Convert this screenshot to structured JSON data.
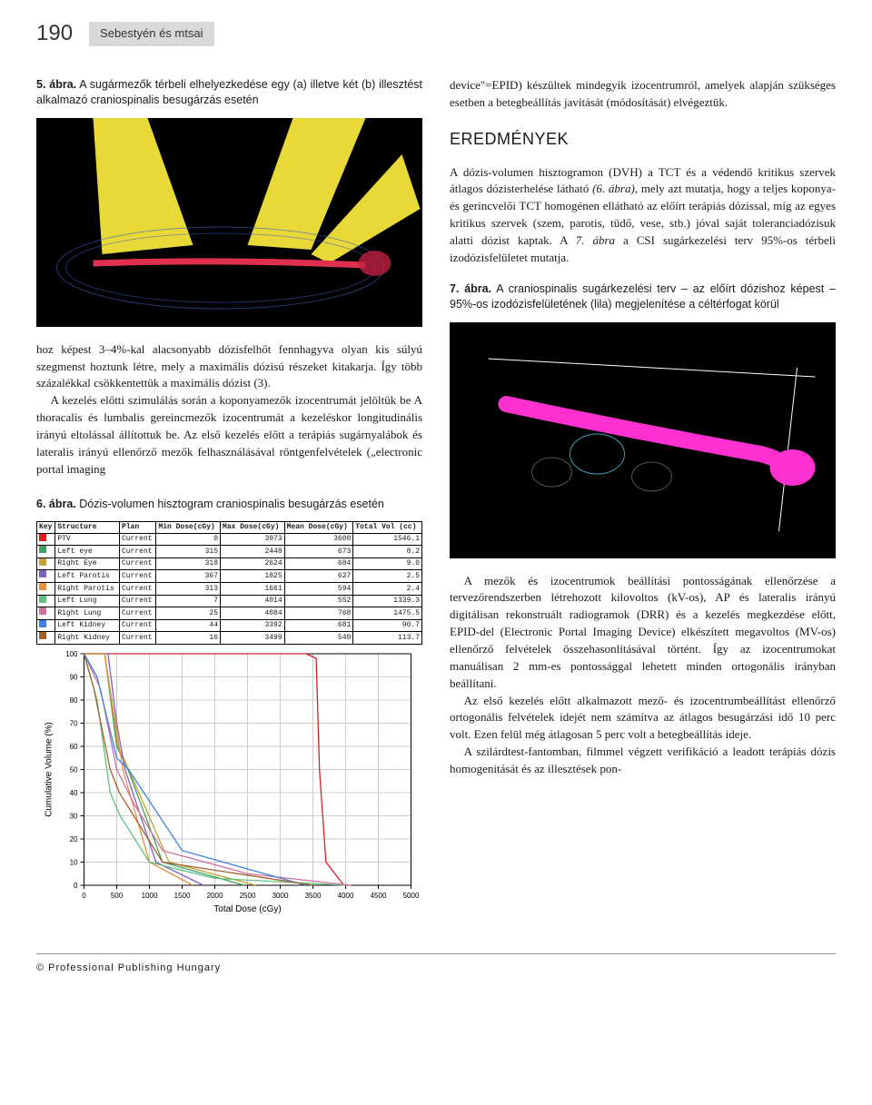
{
  "page_number": "190",
  "header_authors": "Sebestyén és mtsai",
  "figure5": {
    "label": "5. ábra.",
    "caption": "A sugármezők térbeli elhelyezkedése egy (a) illetve két (b) illesztést alkalmazó craniospinalis besugárzás esetén"
  },
  "figure6": {
    "label": "6. ábra.",
    "caption": "Dózis-volumen hisztogram craniospinalis besugárzás esetén",
    "table_headers": [
      "Key",
      "Structure",
      "Plan",
      "Min Dose(cGy)",
      "Max Dose(cGy)",
      "Mean Dose(cGy)",
      "Total Vol (cc)"
    ],
    "table_rows": [
      [
        "PTV",
        "Current",
        "0",
        "3973",
        "3600",
        "1546.1"
      ],
      [
        "Left eye",
        "Current",
        "315",
        "2448",
        "673",
        "8.2"
      ],
      [
        "Right Eye",
        "Current",
        "318",
        "2624",
        "684",
        "9.0"
      ],
      [
        "Left Parotis",
        "Current",
        "367",
        "1825",
        "627",
        "2.5"
      ],
      [
        "Right Parotis",
        "Current",
        "313",
        "1661",
        "594",
        "2.4"
      ],
      [
        "Left Lung",
        "Current",
        "7",
        "4014",
        "552",
        "1339.3"
      ],
      [
        "Right Lung",
        "Current",
        "25",
        "4084",
        "768",
        "1475.5"
      ],
      [
        "Left Kidney",
        "Current",
        "44",
        "3392",
        "681",
        "90.7"
      ],
      [
        "Right Kidney",
        "Current",
        "16",
        "3499",
        "540",
        "113.7"
      ]
    ],
    "chart": {
      "xlabel": "Total Dose (cGy)",
      "ylabel": "Cumulative Volume (%)",
      "xlim": [
        0,
        5000
      ],
      "ylim": [
        0,
        100
      ],
      "xtick_step": 500,
      "ytick_step": 10,
      "grid_color": "#cccccc",
      "background": "#ffffff",
      "series": [
        {
          "name": "PTV",
          "color": "#d82020",
          "points": [
            [
              0,
              100
            ],
            [
              3400,
              100
            ],
            [
              3550,
              98
            ],
            [
              3600,
              50
            ],
            [
              3700,
              10
            ],
            [
              3973,
              0
            ]
          ]
        },
        {
          "name": "Left eye",
          "color": "#40a060",
          "points": [
            [
              0,
              100
            ],
            [
              315,
              100
            ],
            [
              500,
              60
            ],
            [
              673,
              50
            ],
            [
              1200,
              10
            ],
            [
              2448,
              0
            ]
          ]
        },
        {
          "name": "Right Eye",
          "color": "#c8a030",
          "points": [
            [
              0,
              100
            ],
            [
              318,
              100
            ],
            [
              520,
              60
            ],
            [
              684,
              50
            ],
            [
              1300,
              10
            ],
            [
              2624,
              0
            ]
          ]
        },
        {
          "name": "Left Parotis",
          "color": "#8060c0",
          "points": [
            [
              0,
              100
            ],
            [
              367,
              100
            ],
            [
              500,
              70
            ],
            [
              627,
              50
            ],
            [
              1100,
              10
            ],
            [
              1825,
              0
            ]
          ]
        },
        {
          "name": "Right Parotis",
          "color": "#e89040",
          "points": [
            [
              0,
              100
            ],
            [
              313,
              100
            ],
            [
              480,
              70
            ],
            [
              594,
              50
            ],
            [
              1000,
              10
            ],
            [
              1661,
              0
            ]
          ]
        },
        {
          "name": "Left Lung",
          "color": "#60c080",
          "points": [
            [
              0,
              100
            ],
            [
              200,
              80
            ],
            [
              400,
              40
            ],
            [
              552,
              30
            ],
            [
              1000,
              10
            ],
            [
              2000,
              3
            ],
            [
              4014,
              0
            ]
          ]
        },
        {
          "name": "Right Lung",
          "color": "#d070a0",
          "points": [
            [
              0,
              100
            ],
            [
              250,
              85
            ],
            [
              500,
              50
            ],
            [
              768,
              35
            ],
            [
              1200,
              15
            ],
            [
              2500,
              5
            ],
            [
              4084,
              0
            ]
          ]
        },
        {
          "name": "Left Kidney",
          "color": "#4080e0",
          "points": [
            [
              0,
              100
            ],
            [
              200,
              90
            ],
            [
              500,
              55
            ],
            [
              681,
              50
            ],
            [
              1500,
              15
            ],
            [
              3392,
              0
            ]
          ]
        },
        {
          "name": "Right Kidney",
          "color": "#a06030",
          "points": [
            [
              0,
              100
            ],
            [
              150,
              85
            ],
            [
              400,
              50
            ],
            [
              540,
              40
            ],
            [
              1200,
              10
            ],
            [
              3499,
              0
            ]
          ]
        }
      ]
    }
  },
  "figure7": {
    "label": "7. ábra.",
    "caption": "A craniospinalis sugárkezelési terv – az előírt dózishoz képest – 95%-os izodózisfelületének (lila) megjelenítése a céltérfogat körül"
  },
  "left_text_1": "hoz képest 3–4%-kal alacsonyabb dózisfelhőt fennhagyva olyan kis súlyú szegmenst hoztunk létre, mely a maximális dózisú részeket kitakarja. Így több százalékkal csökkentettük a maximális dózist (3).",
  "left_text_2": "A kezelés előtti szimulálás során a koponyamezők izocentrumát jelöltük be A thoracalis és lumbalis gereincmezők izocentrumát a kezeléskor longitudinális irányú eltolással állítottuk be. Az első kezelés előtt a terápiás sugárnyalábok és lateralis irányú ellenőrző mezők felhasználásával röntgenfelvételek („electronic portal imaging",
  "right_text_1": "device\"=EPID) készültek mindegyik izocentrumról, amelyek alapján szükséges esetben a betegbeállítás javítását (módosítását) elvégeztük.",
  "section_eredmenyek": "EREDMÉNYEK",
  "right_text_2": "A dózis-volumen hisztogramon (DVH) a TCT és a védendő kritikus szervek átlagos dózisterhelése látható ",
  "right_text_2_ref": "(6. ábra)",
  "right_text_2_cont": ", mely azt mutatja, hogy a teljes koponya- és gerincvelői TCT homogénen ellátható az előírt terápiás dózissal, míg az egyes kritikus szervek (szem, parotis, tüdő, vese, stb.) jóval saját toleranciadózisuk alatti dózist kaptak. A ",
  "right_text_2_ref2": "7. ábra",
  "right_text_2_cont2": " a CSI sugárkezelési terv 95%-os térbeli izodózisfelületet mutatja.",
  "right_text_3": "A mezők és izocentrumok beállítási pontosságának ellenőrzése a tervezőrendszerben létrehozott kilovoltos (kV-os), AP és lateralis irányú digitálisan rekonstruált radiogramok (DRR) és a kezelés megkezdése előtt, EPID-del (Electronic Portal Imaging Device) elkészített megavoltos (MV-os) ellenőrző felvételek összehasonlításával történt. Így az izocentrumokat manuálisan 2 mm-es pontossággal lehetett minden ortogonális irányban beállítani.",
  "right_text_4": "Az első kezelés előtt alkalmazott mező- és izocentrumbeállítást ellenőrző ortogonális felvételek idejét nem számítva az átlagos besugárzási idő 10 perc volt. Ezen felül még átlagosan 5 perc volt a betegbeállítás ideje.",
  "right_text_5": "A szilárdtest-fantomban, filmmel végzett verifikáció a leadott terápiás dózis homogenitását és az illesztések pon-",
  "footer": "© Professional Publishing Hungary"
}
